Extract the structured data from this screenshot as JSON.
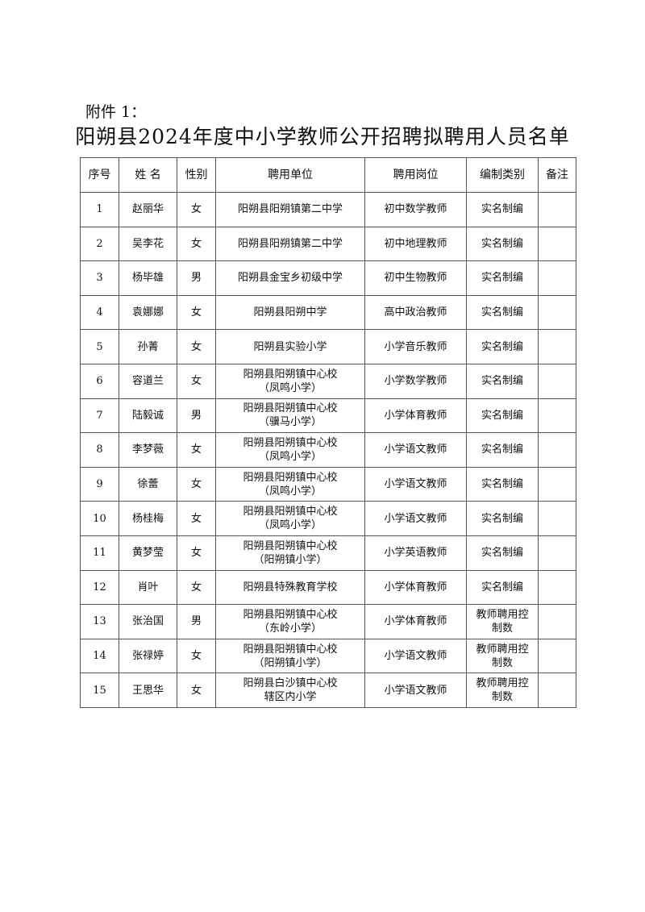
{
  "attachment_label": "附件 1：",
  "title": "阳朔县2024年度中小学教师公开招聘拟聘用人员名单",
  "table": {
    "headers": [
      "序号",
      "姓 名",
      "性别",
      "聘用单位",
      "聘用岗位",
      "编制类别",
      "备注"
    ],
    "rows": [
      [
        "1",
        "赵丽华",
        "女",
        "阳朔县阳朔镇第二中学",
        "初中数学教师",
        "实名制编",
        ""
      ],
      [
        "2",
        "吴李花",
        "女",
        "阳朔县阳朔镇第二中学",
        "初中地理教师",
        "实名制编",
        ""
      ],
      [
        "3",
        "杨毕雄",
        "男",
        "阳朔县金宝乡初级中学",
        "初中生物教师",
        "实名制编",
        ""
      ],
      [
        "4",
        "袁娜娜",
        "女",
        "阳朔县阳朔中学",
        "高中政治教师",
        "实名制编",
        ""
      ],
      [
        "5",
        "孙菁",
        "女",
        "阳朔县实验小学",
        "小学音乐教师",
        "实名制编",
        ""
      ],
      [
        "6",
        "容道兰",
        "女",
        "阳朔县阳朔镇中心校\n（凤鸣小学）",
        "小学数学教师",
        "实名制编",
        ""
      ],
      [
        "7",
        "陆毅诚",
        "男",
        "阳朔县阳朔镇中心校\n（骥马小学）",
        "小学体育教师",
        "实名制编",
        ""
      ],
      [
        "8",
        "李梦薇",
        "女",
        "阳朔县阳朔镇中心校\n（凤鸣小学）",
        "小学语文教师",
        "实名制编",
        ""
      ],
      [
        "9",
        "徐蕾",
        "女",
        "阳朔县阳朔镇中心校\n（凤鸣小学）",
        "小学语文教师",
        "实名制编",
        ""
      ],
      [
        "10",
        "杨桂梅",
        "女",
        "阳朔县阳朔镇中心校\n（凤鸣小学）",
        "小学语文教师",
        "实名制编",
        ""
      ],
      [
        "11",
        "黄梦莹",
        "女",
        "阳朔县阳朔镇中心校\n（阳朔镇小学）",
        "小学英语教师",
        "实名制编",
        ""
      ],
      [
        "12",
        "肖叶",
        "女",
        "阳朔县特殊教育学校",
        "小学体育教师",
        "实名制编",
        ""
      ],
      [
        "13",
        "张治国",
        "男",
        "阳朔县阳朔镇中心校\n（东岭小学）",
        "小学体育教师",
        "教师聘用控\n制数",
        ""
      ],
      [
        "14",
        "张禄婷",
        "女",
        "阳朔县阳朔镇中心校\n（阳朔镇小学）",
        "小学语文教师",
        "教师聘用控\n制数",
        ""
      ],
      [
        "15",
        "王思华",
        "女",
        "阳朔县白沙镇中心校\n辖区内小学",
        "小学语文教师",
        "教师聘用控\n制数",
        ""
      ]
    ]
  }
}
